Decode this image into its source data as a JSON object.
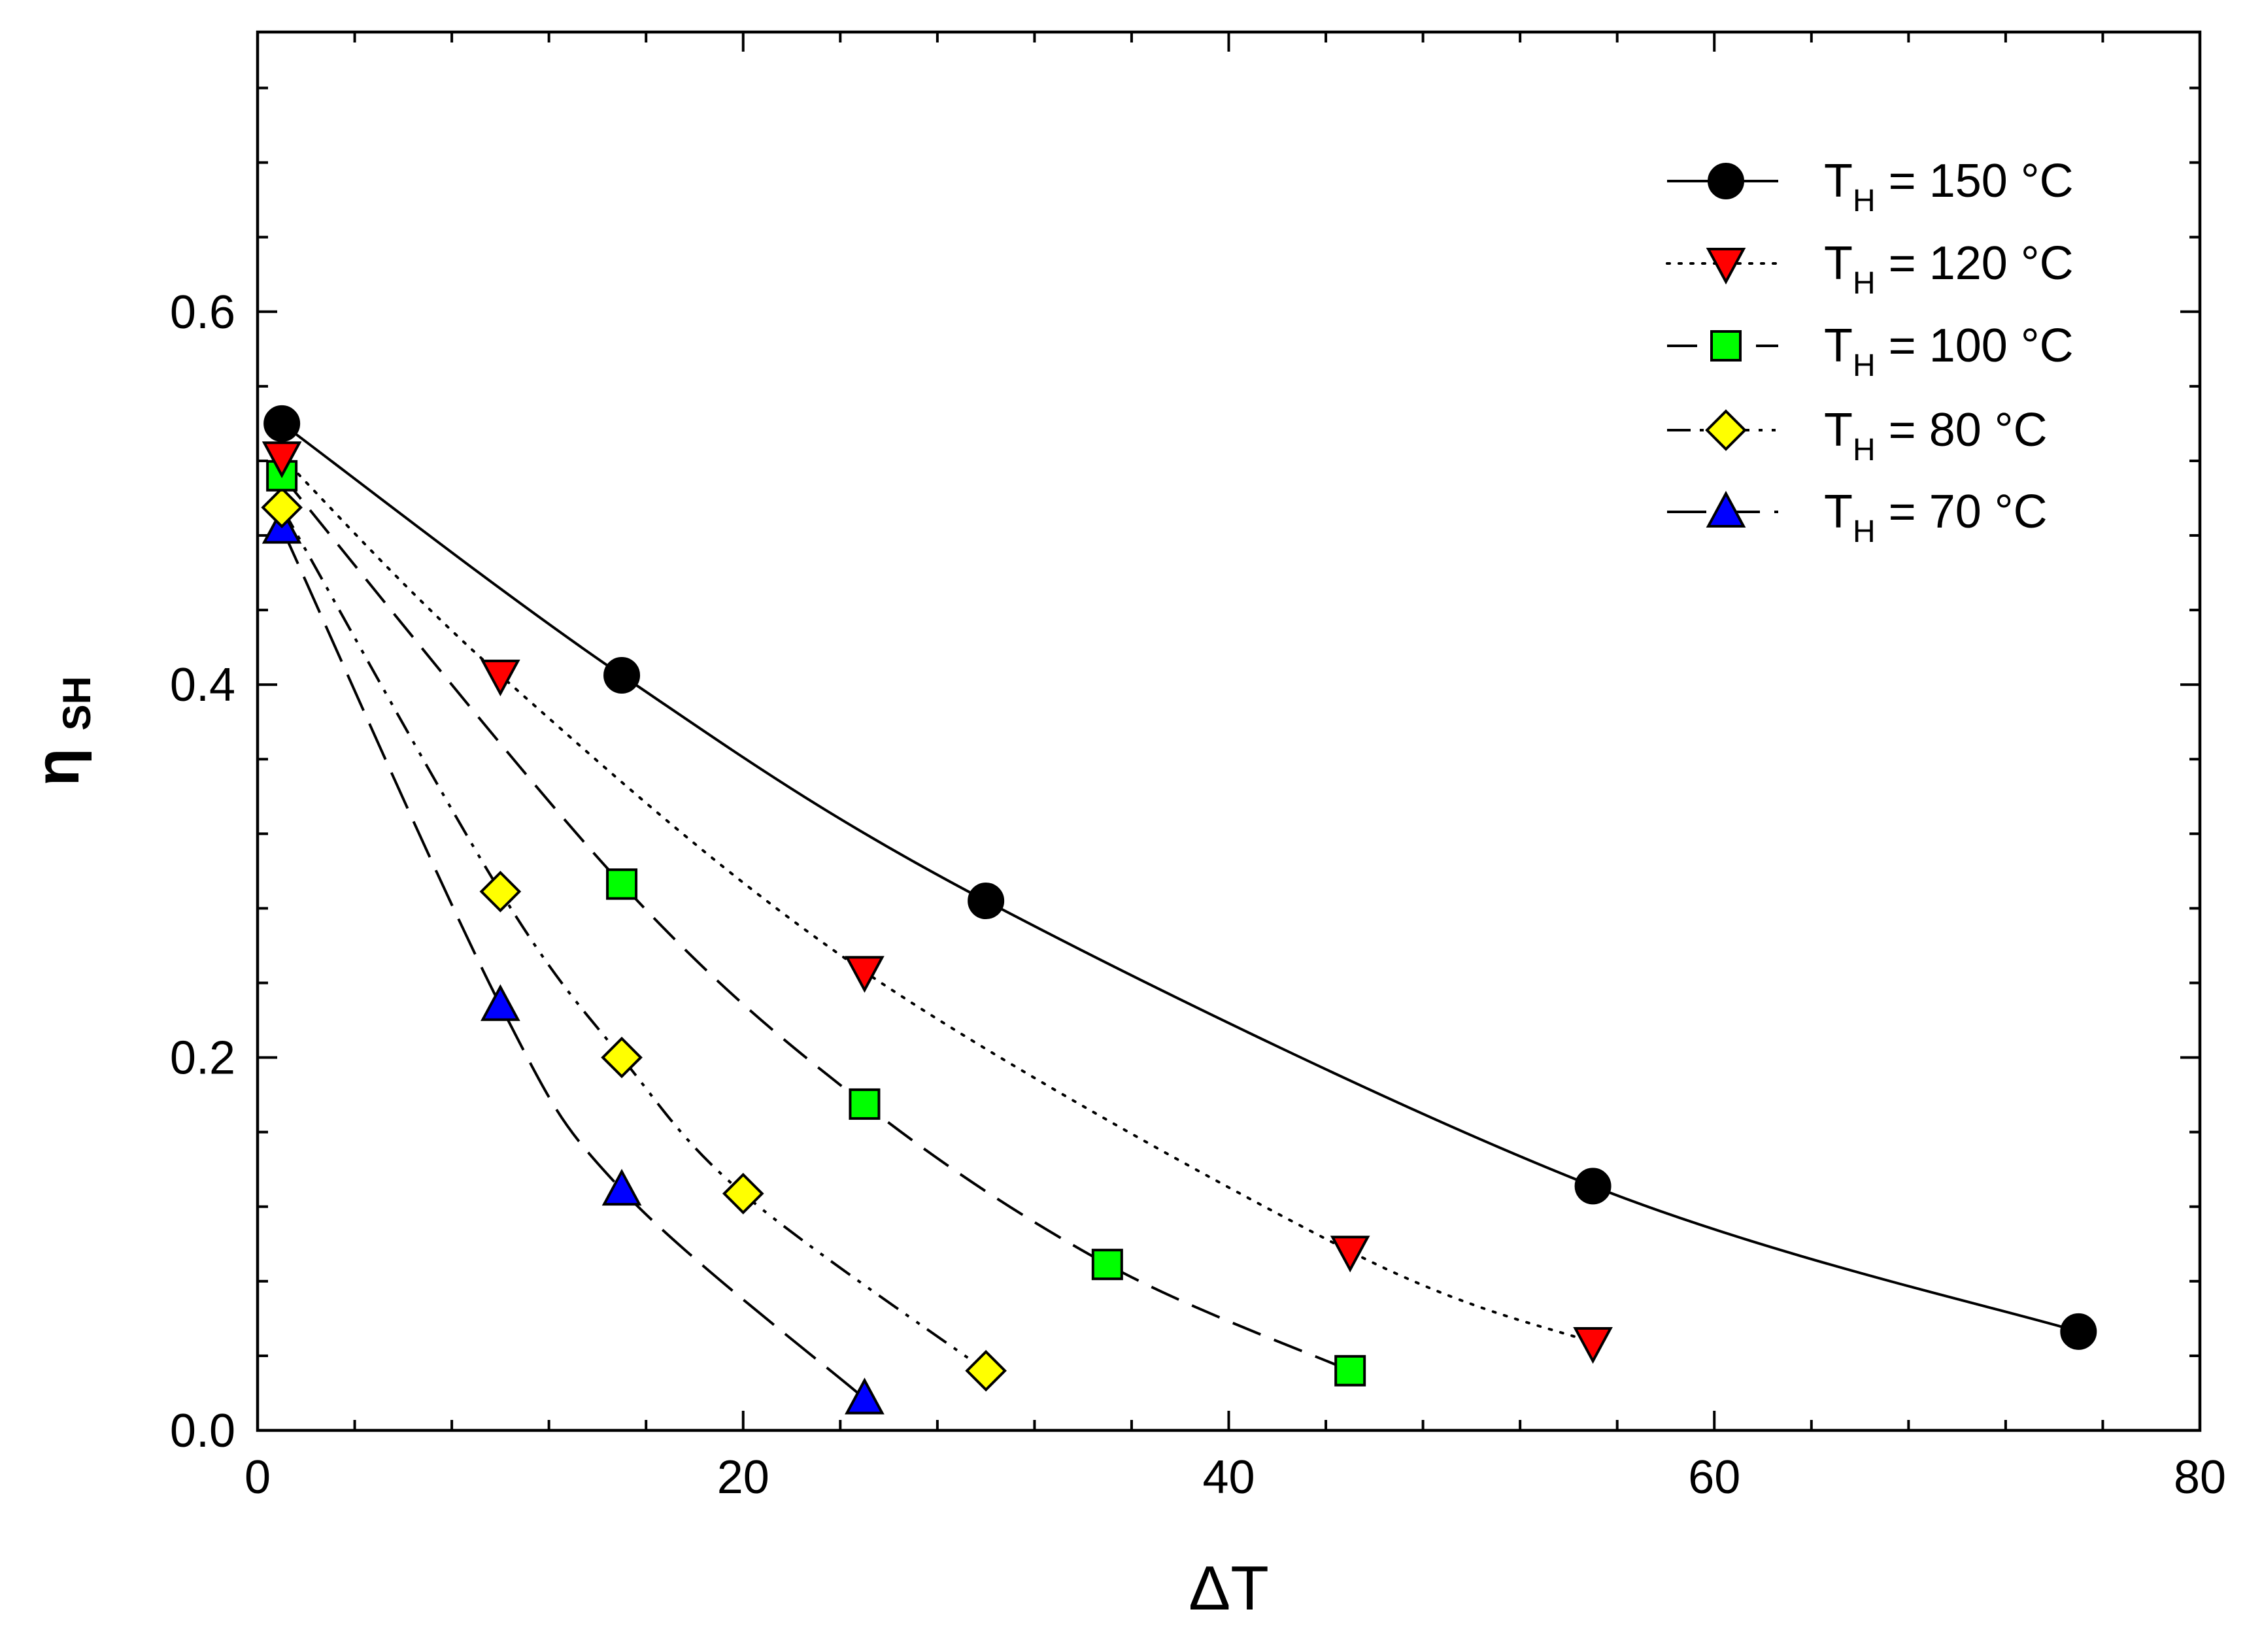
{
  "chart_data": {
    "type": "line",
    "xlabel": "ΔT",
    "ylabel": "η",
    "ylabel_subscript": "SH",
    "xlim": [
      0,
      80
    ],
    "ylim": [
      0.0,
      0.75
    ],
    "x_major_ticks": [
      0,
      20,
      40,
      60,
      80
    ],
    "x_tick_labels": [
      "0",
      "20",
      "40",
      "60",
      "80"
    ],
    "x_minor_step": 4,
    "y_major_ticks": [
      0.0,
      0.2,
      0.4,
      0.6
    ],
    "y_tick_labels": [
      "0.0",
      "0.2",
      "0.4",
      "0.6"
    ],
    "y_minor_step": 0.04,
    "grid": false,
    "legend_position": "top-right",
    "series": [
      {
        "name": "T_H = 150 °C",
        "label_main": "T",
        "label_sub": "H",
        "label_rest": " = 150 °C",
        "marker": "circle",
        "color": "#000000",
        "line_style": "solid",
        "x": [
          1,
          15,
          30,
          55,
          75
        ],
        "y": [
          0.54,
          0.405,
          0.284,
          0.131,
          0.053
        ]
      },
      {
        "name": "T_H = 120 °C",
        "label_main": "T",
        "label_sub": "H",
        "label_rest": " = 120 °C",
        "marker": "triangle-down",
        "color": "#ff0000",
        "line_style": "dotted",
        "x": [
          1,
          10,
          25,
          45,
          55
        ],
        "y": [
          0.522,
          0.405,
          0.246,
          0.096,
          0.047
        ]
      },
      {
        "name": "T_H = 100 °C",
        "label_main": "T",
        "label_sub": "H",
        "label_rest": " = 100 °C",
        "marker": "square",
        "color": "#00ff00",
        "line_style": "dashed",
        "x": [
          1,
          15,
          25,
          35,
          45
        ],
        "y": [
          0.512,
          0.293,
          0.175,
          0.089,
          0.032
        ]
      },
      {
        "name": "T_H = 80 °C",
        "label_main": "T",
        "label_sub": "H",
        "label_rest": " = 80 °C",
        "marker": "diamond",
        "color": "#ffff00",
        "line_style": "dash-dot-dot",
        "x": [
          1,
          10,
          15,
          20,
          30
        ],
        "y": [
          0.495,
          0.289,
          0.2,
          0.127,
          0.032
        ]
      },
      {
        "name": "T_H = 70 °C",
        "label_main": "T",
        "label_sub": "H",
        "label_rest": " = 70 °C",
        "marker": "triangle-up",
        "color": "#0000ff",
        "line_style": "long-dash",
        "x": [
          1,
          10,
          15,
          25
        ],
        "y": [
          0.484,
          0.228,
          0.129,
          0.017
        ]
      }
    ]
  }
}
